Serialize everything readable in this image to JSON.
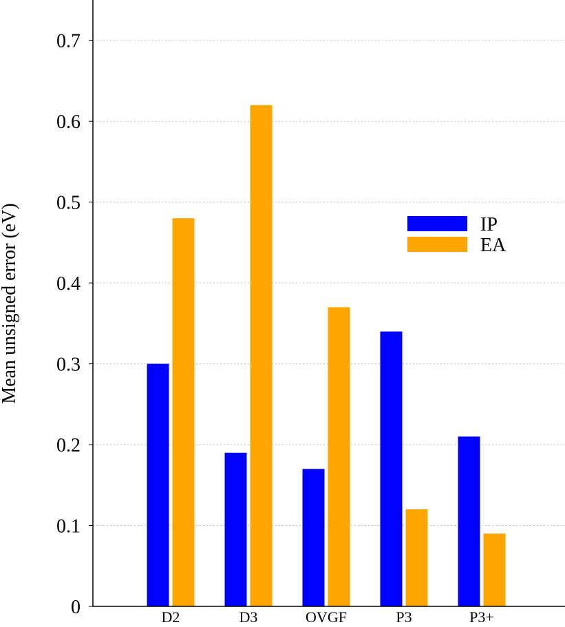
{
  "chart_data": {
    "type": "bar",
    "title": "",
    "xlabel": "",
    "ylabel": "Mean unsigned error (eV)",
    "ylim": [
      0,
      0.75
    ],
    "yticks": [
      0,
      0.1,
      0.2,
      0.3,
      0.4,
      0.5,
      0.6,
      0.7
    ],
    "ytick_labels": [
      "0",
      "0.1",
      "0.2",
      "0.3",
      "0.4",
      "0.5",
      "0.6",
      "0.7"
    ],
    "grid": true,
    "legend_position": "right-center",
    "categories": [
      "D2",
      "D3",
      "OVGF",
      "P3",
      "P3+"
    ],
    "series": [
      {
        "name": "IP",
        "color": "#0000ff",
        "values": [
          0.3,
          0.19,
          0.17,
          0.34,
          0.21
        ]
      },
      {
        "name": "EA",
        "color": "#ffa500",
        "values": [
          0.48,
          0.62,
          0.37,
          0.12,
          0.09
        ]
      }
    ]
  }
}
